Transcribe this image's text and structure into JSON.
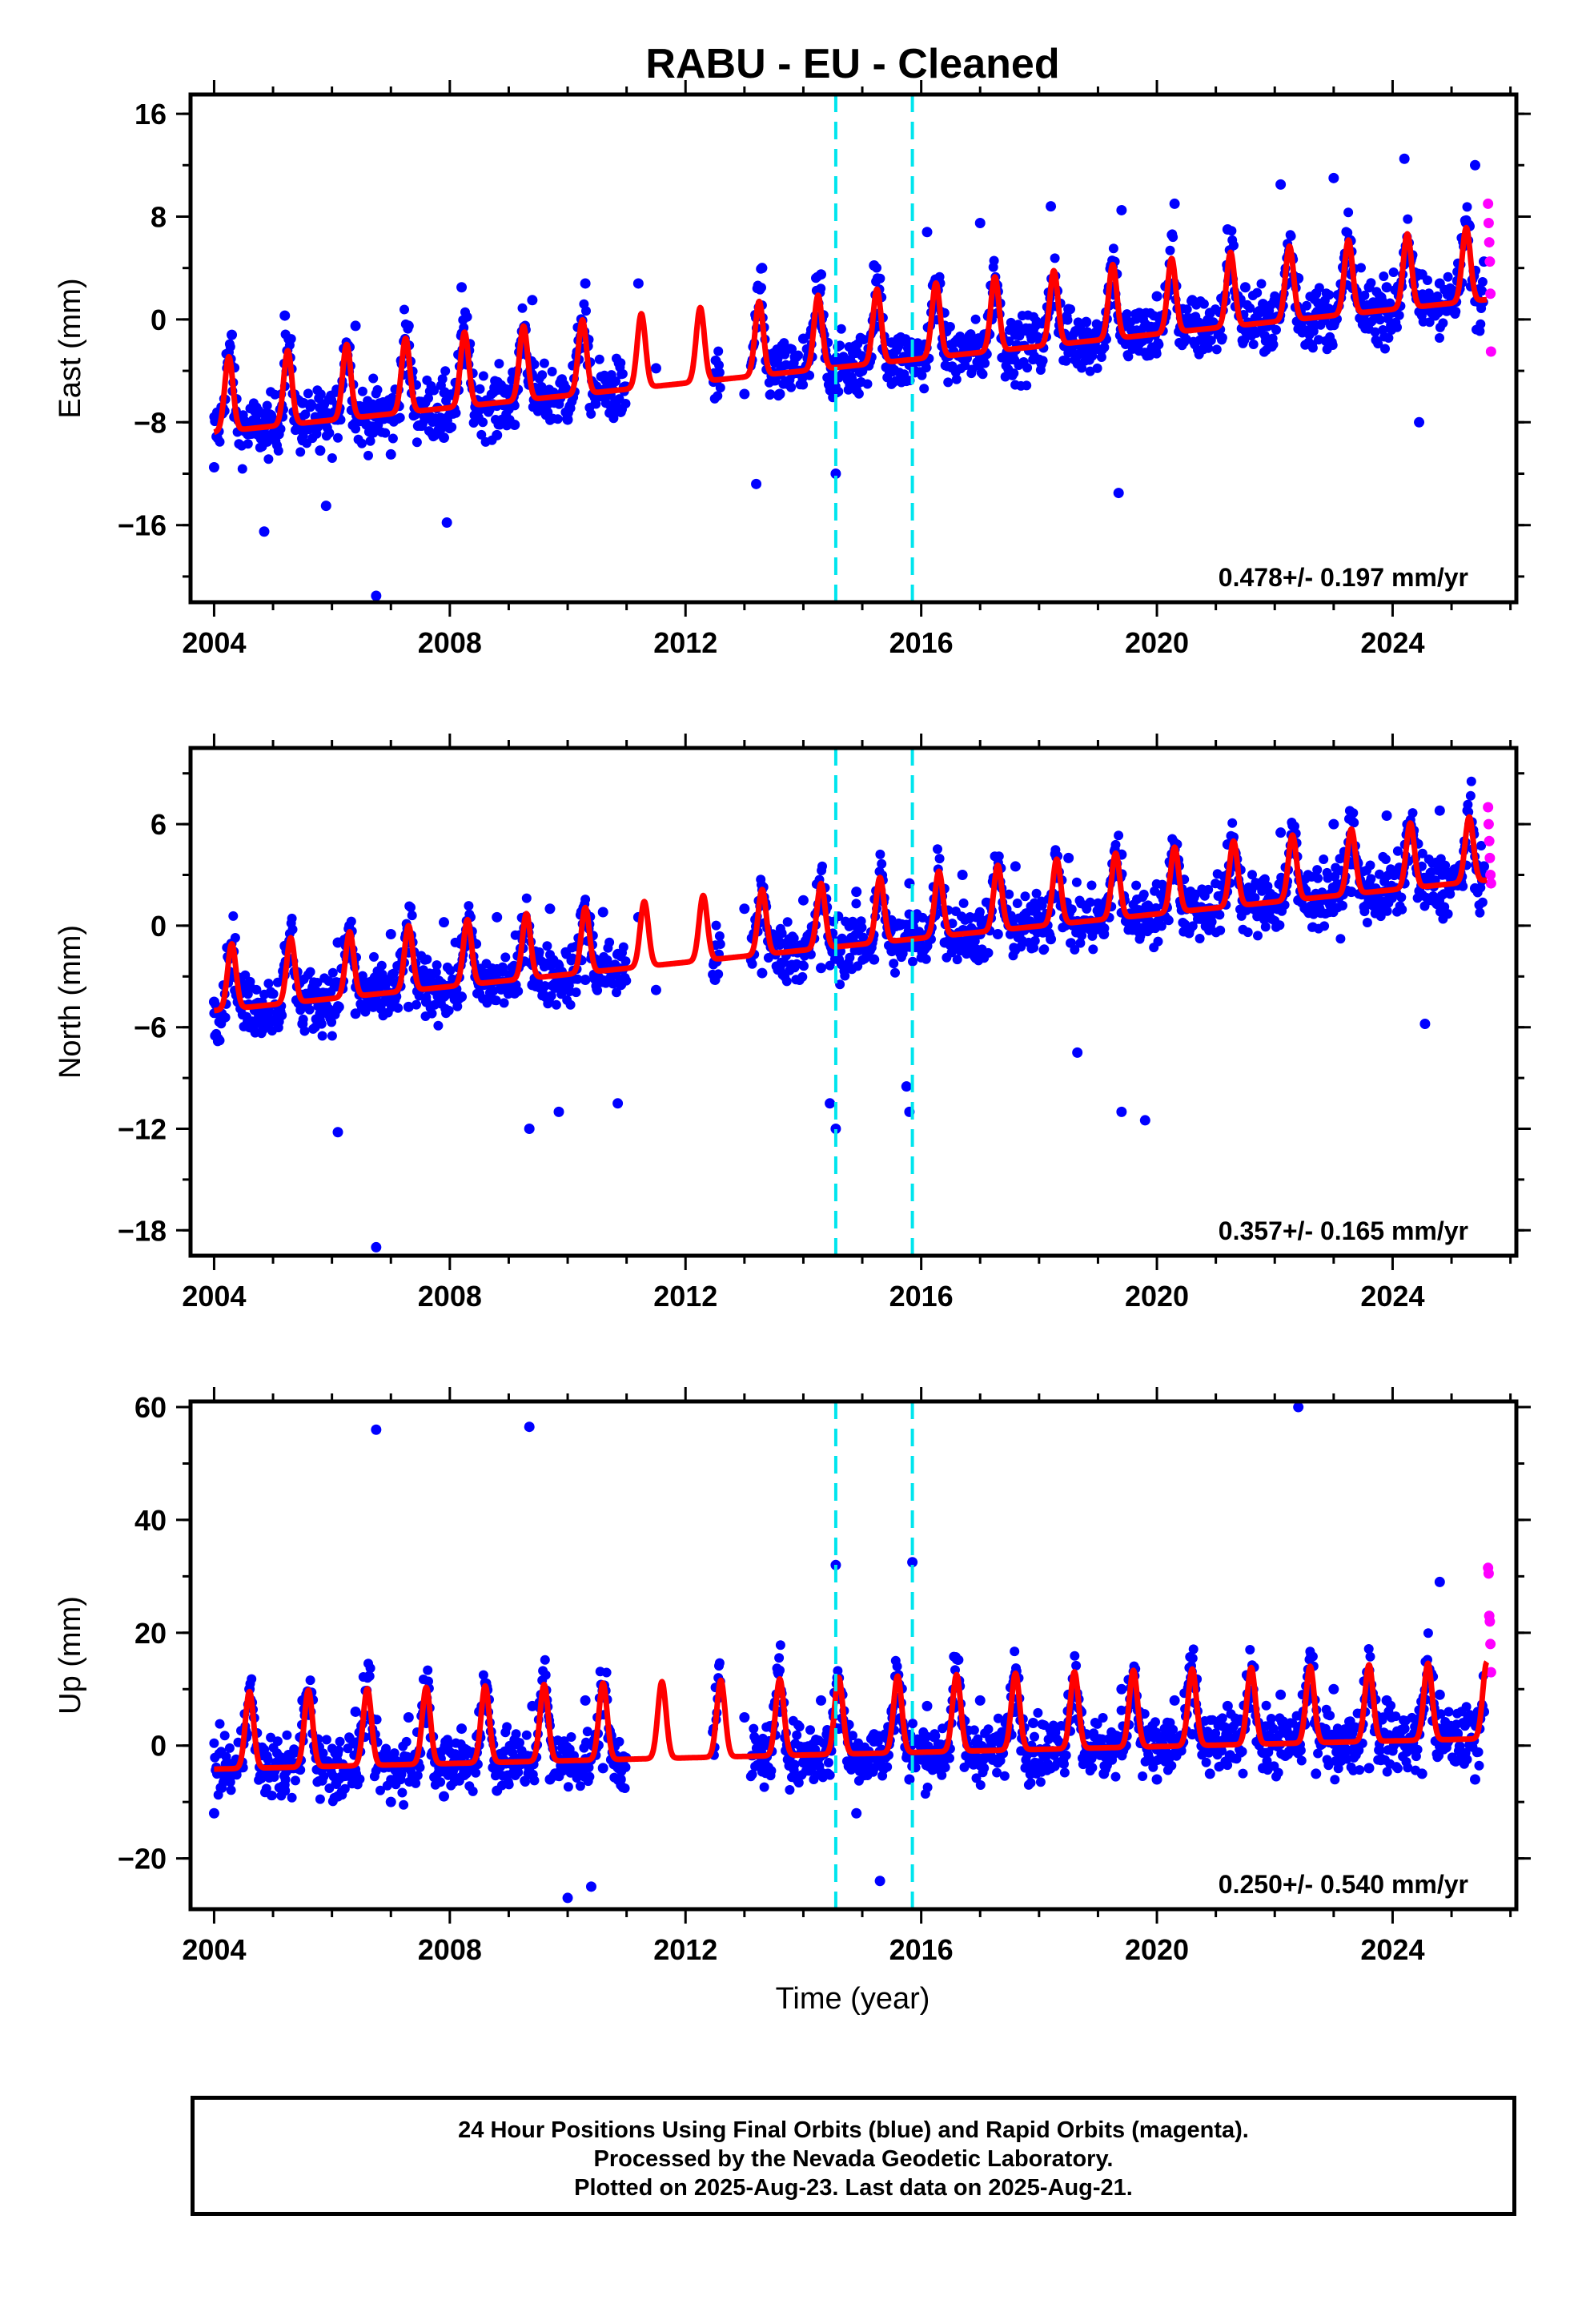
{
  "chart_data": {
    "type": "scatter",
    "title": "RABU  - EU - Cleaned",
    "xlabel": "Time (year)",
    "xlim": [
      2003.6,
      2026.1
    ],
    "xticks": [
      2004,
      2008,
      2012,
      2016,
      2020,
      2024
    ],
    "grid": false,
    "equipment_changes": [
      2014.55,
      2015.85
    ],
    "colors": {
      "final": "#0000ff",
      "rapid": "#ff00ff",
      "model": "#ff0000",
      "offset": "#00e5ee"
    },
    "panels": [
      {
        "ylabel": "East (mm)",
        "ylim": [
          -22,
          17.5
        ],
        "yticks": [
          16,
          8,
          0,
          -8,
          -16
        ],
        "ytick_labels": [
          "16",
          "8",
          "0",
          "−8",
          "−16"
        ],
        "rate": "0.478+/- 0.197 mm/yr",
        "series": [
          {
            "style": "points-final",
            "x": [
              2004.0,
              2004.3,
              2004.6,
              2004.9,
              2005.2,
              2005.5,
              2005.8,
              2006.1,
              2006.4,
              2006.7,
              2007.0,
              2007.3,
              2007.6,
              2007.9,
              2008.2,
              2008.5,
              2008.8,
              2009.1,
              2009.4,
              2009.7,
              2010.0,
              2010.3,
              2010.6,
              2010.9,
              2011.2,
              2011.5,
              2012.5,
              2013.0,
              2013.3,
              2013.6,
              2014.0,
              2014.3,
              2014.6,
              2014.9,
              2015.2,
              2015.5,
              2015.8,
              2016.1,
              2016.4,
              2016.7,
              2017.0,
              2017.3,
              2017.6,
              2017.9,
              2018.2,
              2018.5,
              2018.8,
              2019.1,
              2019.4,
              2019.7,
              2020.0,
              2020.3,
              2020.6,
              2020.9,
              2021.2,
              2021.5,
              2021.8,
              2022.1,
              2022.4,
              2022.7,
              2023.0,
              2023.3,
              2023.6,
              2023.9,
              2024.2,
              2024.5,
              2024.8,
              2025.1,
              2025.4,
              2025.55
            ],
            "y": [
              -11.5,
              -1.2,
              -8.8,
              -9.5,
              0.3,
              -6.5,
              -10.2,
              -7.8,
              -0.5,
              -8.8,
              -10.5,
              -0.5,
              -7.5,
              -9.2,
              2.5,
              -6.8,
              -9.0,
              -8.2,
              1.5,
              -6.2,
              -7.8,
              2.8,
              -5.5,
              -7.2,
              2.8,
              -3.8,
              -4.8,
              -5.8,
              4.0,
              -5.8,
              -1.5,
              3.5,
              -4.5,
              -5.5,
              4.2,
              -1.8,
              -2.5,
              6.8,
              -0.5,
              -1.8,
              7.5,
              0.5,
              -1.2,
              -0.8,
              8.8,
              0.8,
              -0.2,
              -0.5,
              8.5,
              0.5,
              1.8,
              9.0,
              1.5,
              0.5,
              7.0,
              2.5,
              1.2,
              10.5,
              3.2,
              2.0,
              11.0,
              3.5,
              2.5,
              2.5,
              12.5,
              3.5,
              2.8,
              3.0,
              12.0,
              4.5
            ]
          },
          {
            "style": "points-rapid",
            "x": [
              2025.62,
              2025.63,
              2025.64,
              2025.65,
              2025.66,
              2025.67
            ],
            "y": [
              9.0,
              7.5,
              6.0,
              4.5,
              2.0,
              -2.5
            ]
          },
          {
            "style": "model-curve",
            "model": "annual-seasonal",
            "base": -6.8,
            "rate": 0.478,
            "amp": 3.6,
            "peak_phase": 0.25
          },
          {
            "style": "outliers",
            "x": [
              2004.85,
              2005.9,
              2006.75,
              2007.95,
              2013.2,
              2014.55,
              2019.35,
              2024.45
            ],
            "y": [
              -16.5,
              -14.5,
              -21.5,
              -15.8,
              -12.8,
              -12.0,
              -13.5,
              -8.0
            ]
          }
        ]
      },
      {
        "ylabel": "North (mm)",
        "ylim": [
          -19.5,
          10.5
        ],
        "yticks": [
          6,
          0,
          -6,
          -12,
          -18
        ],
        "ytick_labels": [
          "6",
          "0",
          "−6",
          "−12",
          "−18"
        ],
        "rate": "0.357+/- 0.165 mm/yr",
        "series": [
          {
            "style": "points-final",
            "x": [
              2004.0,
              2004.3,
              2004.6,
              2004.9,
              2005.2,
              2005.5,
              2005.8,
              2006.1,
              2006.4,
              2006.7,
              2007.0,
              2007.3,
              2007.6,
              2007.9,
              2008.2,
              2008.5,
              2008.8,
              2009.1,
              2009.4,
              2009.7,
              2010.0,
              2010.3,
              2010.6,
              2010.9,
              2011.2,
              2011.5,
              2012.5,
              2013.0,
              2013.3,
              2013.6,
              2014.0,
              2014.3,
              2014.6,
              2014.9,
              2015.2,
              2015.5,
              2015.8,
              2016.1,
              2016.4,
              2016.7,
              2017.0,
              2017.3,
              2017.6,
              2017.9,
              2018.2,
              2018.5,
              2018.8,
              2019.1,
              2019.4,
              2019.7,
              2020.0,
              2020.3,
              2020.6,
              2020.9,
              2021.2,
              2021.5,
              2021.8,
              2022.1,
              2022.4,
              2022.7,
              2023.0,
              2023.3,
              2023.6,
              2023.9,
              2024.2,
              2024.5,
              2024.8,
              2025.1,
              2025.4,
              2025.55
            ],
            "y": [
              -4.5,
              -1.5,
              -6.0,
              -5.5,
              -1.2,
              -5.8,
              -5.2,
              -1.0,
              -5.2,
              -4.8,
              -0.5,
              -4.8,
              -4.5,
              0.2,
              -4.2,
              -4.0,
              0.5,
              -4.0,
              -3.5,
              1.0,
              -3.8,
              -3.2,
              0.8,
              -3.5,
              0.5,
              -3.8,
              -3.2,
              1.0,
              -2.8,
              -2.5,
              1.5,
              -2.5,
              -2.0,
              2.0,
              -2.0,
              -1.5,
              2.5,
              -1.2,
              -1.0,
              3.0,
              -0.5,
              -0.5,
              3.5,
              -0.2,
              -0.8,
              4.0,
              0.2,
              -0.5,
              4.2,
              0.5,
              0.2,
              4.5,
              1.0,
              0.5,
              4.8,
              1.2,
              1.0,
              5.5,
              1.5,
              1.2,
              6.0,
              2.0,
              1.5,
              6.5,
              2.5,
              1.8,
              6.8,
              2.5,
              2.2,
              3.5
            ],
            "note": "dense daily cloud; representative sample"
          },
          {
            "style": "points-rapid",
            "x": [
              2025.62,
              2025.63,
              2025.64,
              2025.65,
              2025.66,
              2025.67
            ],
            "y": [
              7.0,
              6.0,
              5.0,
              4.0,
              3.0,
              2.5
            ]
          },
          {
            "style": "model-curve",
            "model": "annual-seasonal",
            "base": -3.7,
            "rate": 0.357,
            "amp": 2.4,
            "peak_phase": 0.3
          },
          {
            "style": "outliers",
            "x": [
              2006.1,
              2006.75,
              2009.35,
              2009.85,
              2010.85,
              2014.55,
              2014.45,
              2015.8,
              2015.75,
              2018.65,
              2019.4,
              2019.8,
              2024.55
            ],
            "y": [
              -12.2,
              -19.0,
              -12.0,
              -11.0,
              -10.5,
              -12.0,
              -10.5,
              -11.0,
              -9.5,
              -7.5,
              -11.0,
              -11.5,
              -5.8
            ]
          }
        ]
      },
      {
        "ylabel": "Up (mm)",
        "ylim": [
          -29,
          61
        ],
        "yticks": [
          60,
          40,
          20,
          0,
          -20
        ],
        "ytick_labels": [
          "60",
          "40",
          "20",
          "0",
          "−20"
        ],
        "rate": "0.250+/- 0.540 mm/yr",
        "series": [
          {
            "style": "points-final",
            "x": [
              2004.0,
              2004.3,
              2004.6,
              2004.9,
              2005.2,
              2005.5,
              2005.8,
              2006.1,
              2006.4,
              2006.7,
              2007.0,
              2007.3,
              2007.6,
              2007.9,
              2008.2,
              2008.5,
              2008.8,
              2009.1,
              2009.4,
              2009.7,
              2010.0,
              2010.3,
              2010.6,
              2010.9,
              2013.0,
              2013.3,
              2013.6,
              2014.0,
              2014.3,
              2014.6,
              2014.9,
              2015.2,
              2015.5,
              2015.8,
              2016.1,
              2016.4,
              2016.7,
              2017.0,
              2017.3,
              2017.6,
              2017.9,
              2018.2,
              2018.5,
              2018.8,
              2019.1,
              2019.4,
              2019.7,
              2020.0,
              2020.3,
              2020.6,
              2020.9,
              2021.2,
              2021.5,
              2021.8,
              2022.1,
              2022.4,
              2022.7,
              2023.0,
              2023.3,
              2023.6,
              2023.9,
              2024.2,
              2024.5,
              2024.8,
              2025.1,
              2025.4,
              2025.55
            ],
            "y": [
              -12.0,
              -5.0,
              10.0,
              -4.0,
              -8.0,
              8.0,
              -2.0,
              -9.0,
              6.0,
              2.0,
              -10.0,
              5.0,
              4.0,
              -9.0,
              3.0,
              6.0,
              -8.0,
              1.0,
              7.0,
              -6.0,
              -2.0,
              8.0,
              -4.0,
              -6.0,
              5.0,
              -2.0,
              6.0,
              -3.0,
              8.0,
              3.0,
              -12.0,
              2.0,
              6.0,
              -6.0,
              7.0,
              -2.0,
              4.0,
              8.0,
              -3.0,
              6.0,
              4.0,
              -4.0,
              9.0,
              2.0,
              -5.0,
              10.0,
              3.0,
              -6.0,
              8.0,
              2.0,
              -5.0,
              7.0,
              4.0,
              -4.0,
              9.0,
              3.0,
              -5.0,
              10.0,
              2.0,
              -4.0,
              8.0,
              3.0,
              -5.0,
              9.0,
              2.0,
              -6.0,
              6.0
            ],
            "note": "dense daily cloud; representative sample"
          },
          {
            "style": "points-rapid",
            "x": [
              2025.62,
              2025.63,
              2025.64,
              2025.65,
              2025.66,
              2025.67
            ],
            "y": [
              31.5,
              30.5,
              23.0,
              22.0,
              18.0,
              13.0
            ]
          },
          {
            "style": "model-curve",
            "model": "annual-seasonal",
            "base": 0.5,
            "rate": 0.25,
            "amp": 8.5,
            "peak_phase": 0.6
          },
          {
            "style": "outliers",
            "x": [
              2006.75,
              2009.35,
              2010.0,
              2014.55,
              2015.85,
              2022.4,
              2024.8,
              2010.4,
              2015.3
            ],
            "y": [
              56.0,
              56.5,
              -27.0,
              32.0,
              32.5,
              60.0,
              29.0,
              -25.0,
              -24.0
            ]
          }
        ]
      }
    ]
  },
  "footer": {
    "line1": "24 Hour Positions Using Final Orbits (blue) and Rapid Orbits (magenta).",
    "line2": "Processed by the Nevada Geodetic Laboratory.",
    "line3": "Plotted on 2025-Aug-23. Last data on 2025-Aug-21."
  }
}
